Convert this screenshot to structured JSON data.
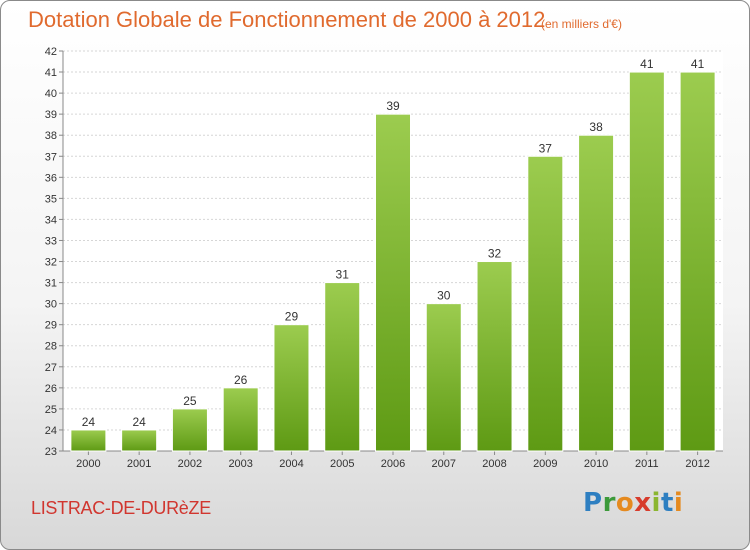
{
  "header": {
    "title": "Dotation Globale de Fonctionnement de 2000 à 2012",
    "subtitle": "(en milliers d'€)"
  },
  "footer": {
    "commune": "LISTRAC-DE-DURèZE",
    "logo": {
      "p": "P",
      "r": "r",
      "o": "o",
      "x": "x",
      "i": "i",
      "t": "t",
      "i2": "i"
    }
  },
  "colors": {
    "bar_top": "#9ccc4f",
    "bar_bottom": "#5e9a14",
    "title": "#e06a2e",
    "commune": "#d1362f"
  },
  "chart_data": {
    "type": "bar",
    "categories": [
      "2000",
      "2001",
      "2002",
      "2003",
      "2004",
      "2005",
      "2006",
      "2007",
      "2008",
      "2009",
      "2010",
      "2011",
      "2012"
    ],
    "values": [
      24,
      24,
      25,
      26,
      29,
      31,
      39,
      30,
      32,
      37,
      38,
      41,
      41
    ],
    "title": "Dotation Globale de Fonctionnement de 2000 à 2012",
    "subtitle": "(en milliers d'€)",
    "ylim": [
      23,
      42
    ],
    "yticks": [
      23,
      24,
      25,
      26,
      27,
      28,
      29,
      30,
      31,
      32,
      33,
      34,
      35,
      36,
      37,
      38,
      39,
      40,
      41,
      42
    ],
    "grid": true,
    "legend": "none"
  }
}
